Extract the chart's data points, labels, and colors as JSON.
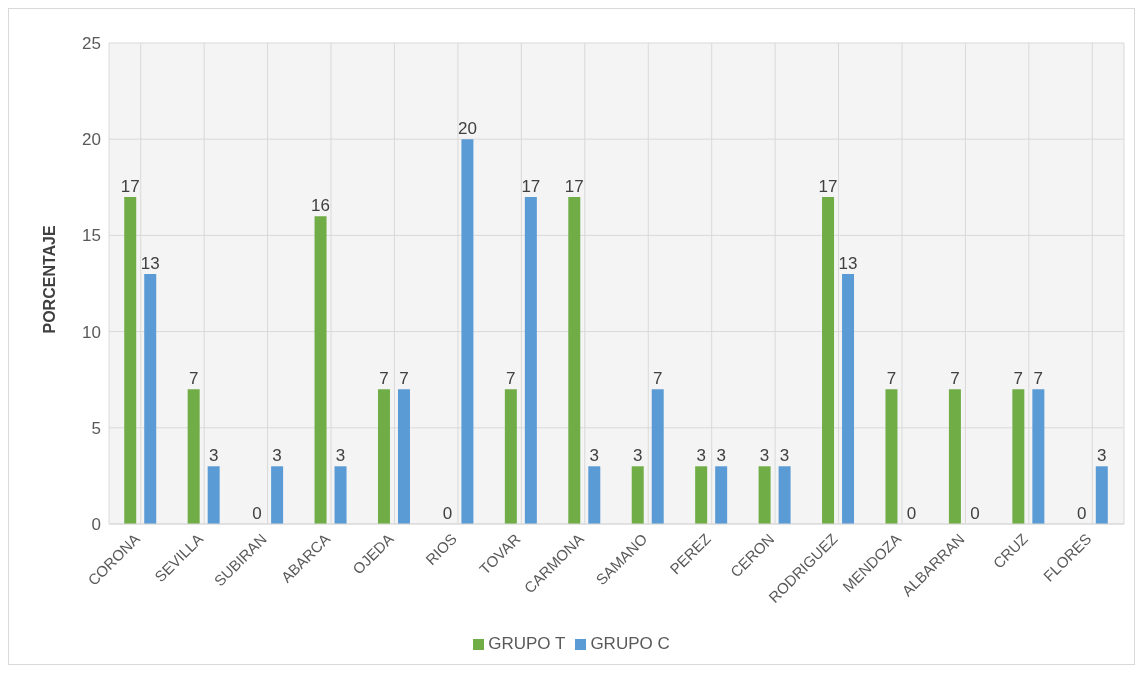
{
  "chart_data": {
    "type": "bar",
    "ylabel": "PORCENTAJE",
    "categories": [
      "CORONA",
      "SEVILLA",
      "SUBIRAN",
      "ABARCA",
      "OJEDA",
      "RIOS",
      "TOVAR",
      "CARMONA",
      "SAMANO",
      "PEREZ",
      "CERON",
      "RODRIGUEZ",
      "MENDOZA",
      "ALBARRAN",
      "CRUZ",
      "FLORES"
    ],
    "series": [
      {
        "name": "GRUPO T",
        "color": "#70ad47",
        "values": [
          17,
          7,
          0,
          16,
          7,
          0,
          7,
          17,
          3,
          3,
          3,
          17,
          7,
          7,
          7,
          0
        ]
      },
      {
        "name": "GRUPO C",
        "color": "#5b9bd5",
        "values": [
          13,
          3,
          3,
          3,
          7,
          20,
          17,
          3,
          7,
          3,
          3,
          13,
          0,
          0,
          7,
          3
        ]
      }
    ],
    "ylim": [
      0,
      25
    ],
    "yticks": [
      0,
      5,
      10,
      15,
      20,
      25
    ],
    "grid": true,
    "legend": "bottom",
    "data_labels": true
  }
}
